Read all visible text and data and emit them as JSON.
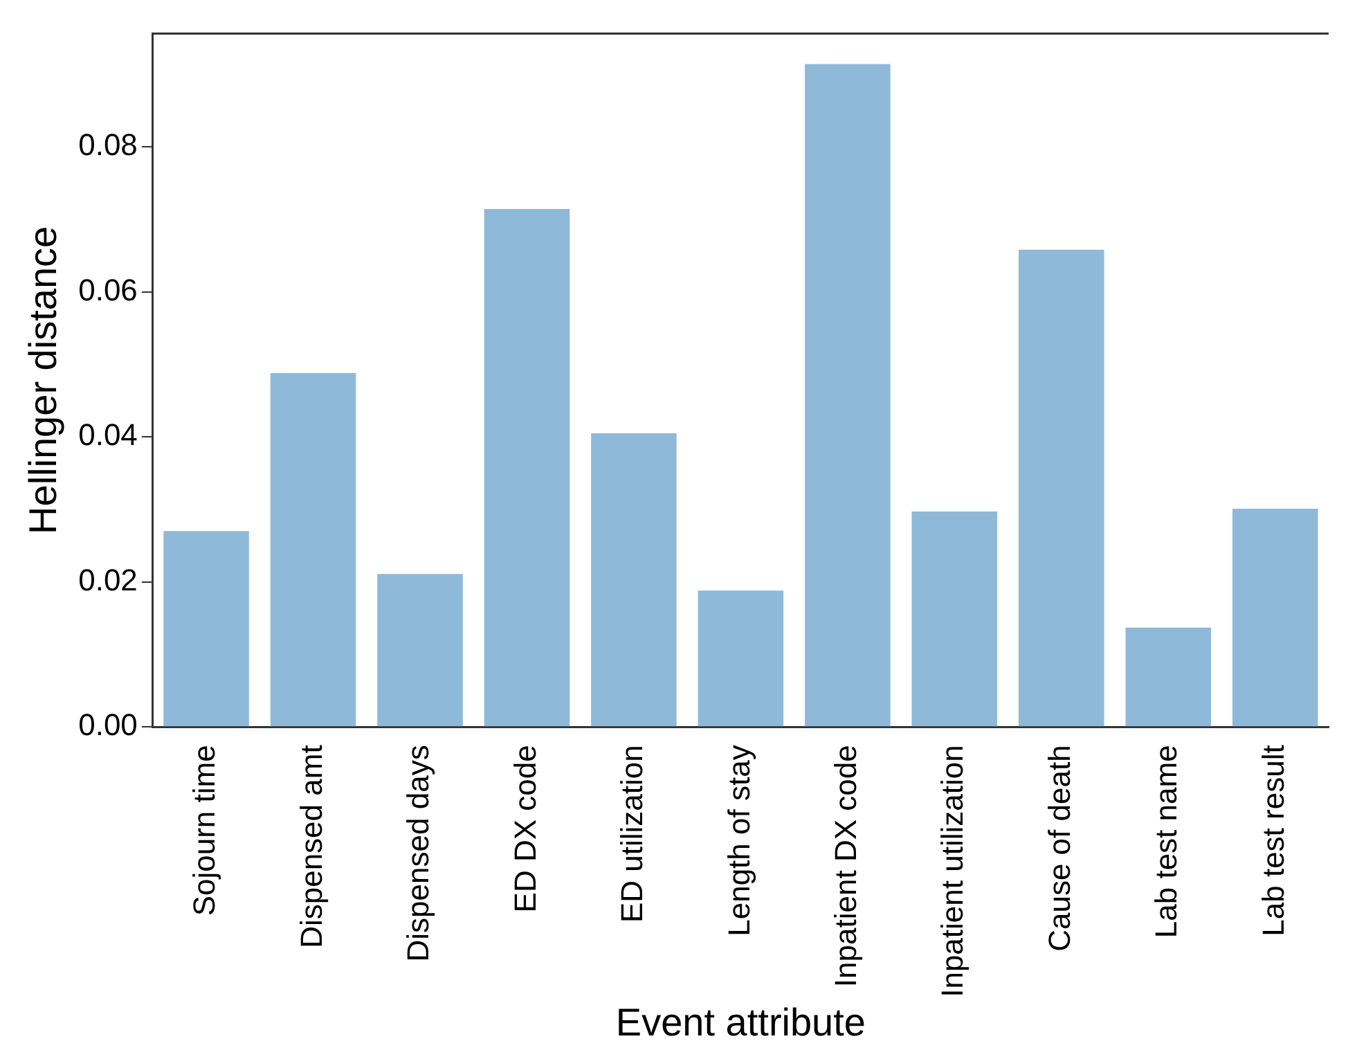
{
  "chart_data": {
    "type": "bar",
    "xlabel": "Event attribute",
    "ylabel": "Hellinger distance",
    "categories": [
      "Sojourn time",
      "Dispensed amt",
      "Dispensed days",
      "ED DX code",
      "ED utilization",
      "Length of stay",
      "Inpatient DX code",
      "Inpatient utilization",
      "Cause of death",
      "Lab test name",
      "Lab test result"
    ],
    "values": [
      0.027,
      0.0488,
      0.0211,
      0.0714,
      0.0405,
      0.0188,
      0.0914,
      0.0297,
      0.0658,
      0.0137,
      0.0301
    ],
    "color": "#8fb9d8",
    "ylim": [
      0,
      0.0956
    ],
    "yticks": [
      {
        "value": 0,
        "label": "0.00"
      },
      0.02,
      0.04,
      0.06,
      0.08
    ],
    "grid": false,
    "legend": false
  }
}
